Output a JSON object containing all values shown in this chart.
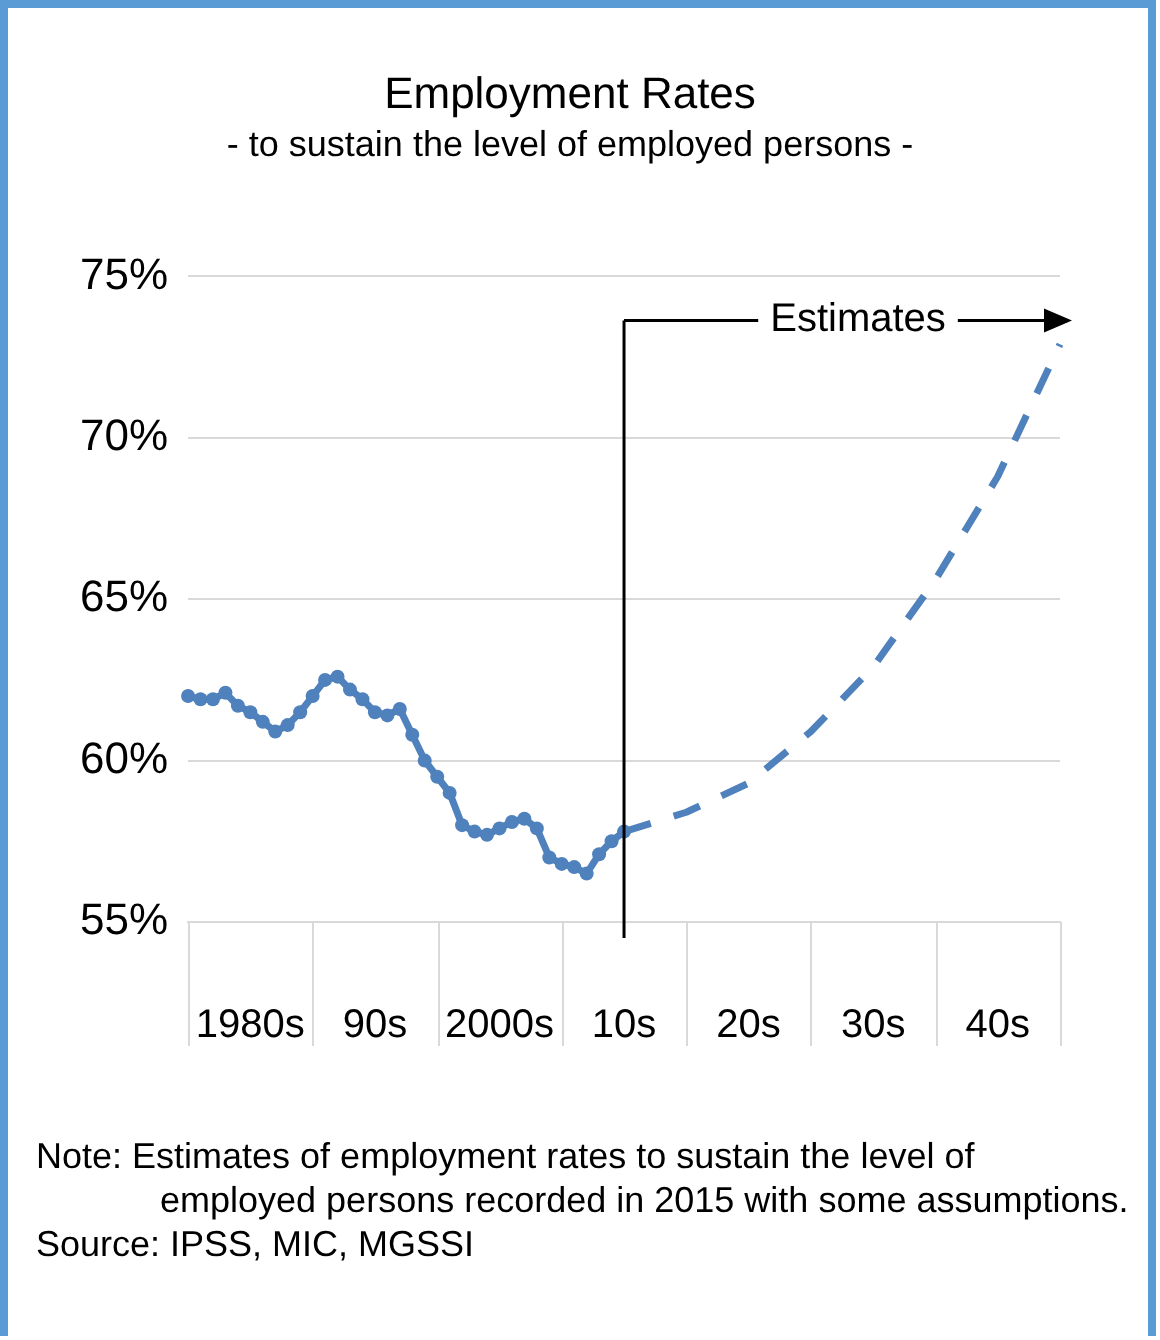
{
  "chart_data": {
    "type": "line",
    "title": "Employment Rates",
    "subtitle": "- to sustain the level of employed persons -",
    "categories": [
      null,
      null,
      null,
      null,
      null,
      "1980s",
      null,
      null,
      null,
      null,
      null,
      null,
      null,
      null,
      null,
      "90s",
      null,
      null,
      null,
      null,
      null,
      null,
      null,
      null,
      null,
      "2000s",
      null,
      null,
      null,
      null,
      null,
      null,
      null,
      null,
      null,
      "10s",
      null,
      null,
      null,
      null,
      null,
      null,
      null,
      null,
      null,
      "20s",
      null,
      null,
      null,
      null,
      null,
      null,
      null,
      null,
      null,
      "30s",
      null,
      null,
      null,
      null,
      null,
      null,
      null,
      null,
      null,
      "40s",
      null,
      null,
      null,
      null,
      null
    ],
    "ylim": [
      55,
      75
    ],
    "yticks": [
      {
        "value": 55,
        "label": "55%"
      },
      {
        "value": 60,
        "label": "60%"
      },
      {
        "value": 65,
        "label": "65%"
      },
      {
        "value": 70,
        "label": "70%"
      },
      {
        "value": 75,
        "label": "75%"
      }
    ],
    "grid": "y",
    "legend": false,
    "series": [
      {
        "color": "#4f81bd",
        "marker": "circle",
        "line_style": "solid",
        "values": [
          62.0,
          61.9,
          61.9,
          62.1,
          61.7,
          61.5,
          61.2,
          60.9,
          61.1,
          61.5,
          62.0,
          62.5,
          62.6,
          62.2,
          61.9,
          61.5,
          61.4,
          61.6,
          60.8,
          60.0,
          59.5,
          59.0,
          58.0,
          57.8,
          57.7,
          57.9,
          58.1,
          58.2,
          57.9,
          57.0,
          56.8,
          56.7,
          56.5,
          57.1,
          57.5,
          57.8,
          null,
          null,
          null,
          null,
          null,
          null,
          null,
          null,
          null,
          null,
          null,
          null,
          null,
          null,
          null,
          null,
          null,
          null,
          null,
          null,
          null,
          null,
          null,
          null,
          null,
          null,
          null,
          null,
          null,
          null,
          null,
          null,
          null,
          null,
          null
        ]
      },
      {
        "color": "#4f81bd",
        "marker": "none",
        "line_style": "dashed",
        "values": [
          null,
          null,
          null,
          null,
          null,
          null,
          null,
          null,
          null,
          null,
          null,
          null,
          null,
          null,
          null,
          null,
          null,
          null,
          null,
          null,
          null,
          null,
          null,
          null,
          null,
          null,
          null,
          null,
          null,
          null,
          null,
          null,
          null,
          null,
          null,
          57.8,
          null,
          null,
          null,
          null,
          58.4,
          null,
          null,
          null,
          null,
          59.3,
          null,
          null,
          null,
          null,
          60.9,
          null,
          null,
          null,
          null,
          62.9,
          null,
          null,
          null,
          null,
          65.6,
          null,
          null,
          null,
          null,
          68.8,
          null,
          null,
          null,
          null,
          72.9
        ]
      }
    ],
    "annotations": [
      {
        "text": "Estimates"
      },
      "Note: Estimates of employment rates to sustain the level of employed persons recorded in 2015 with some assumptions.",
      "Source: IPSS, MIC, MGSSI"
    ]
  }
}
